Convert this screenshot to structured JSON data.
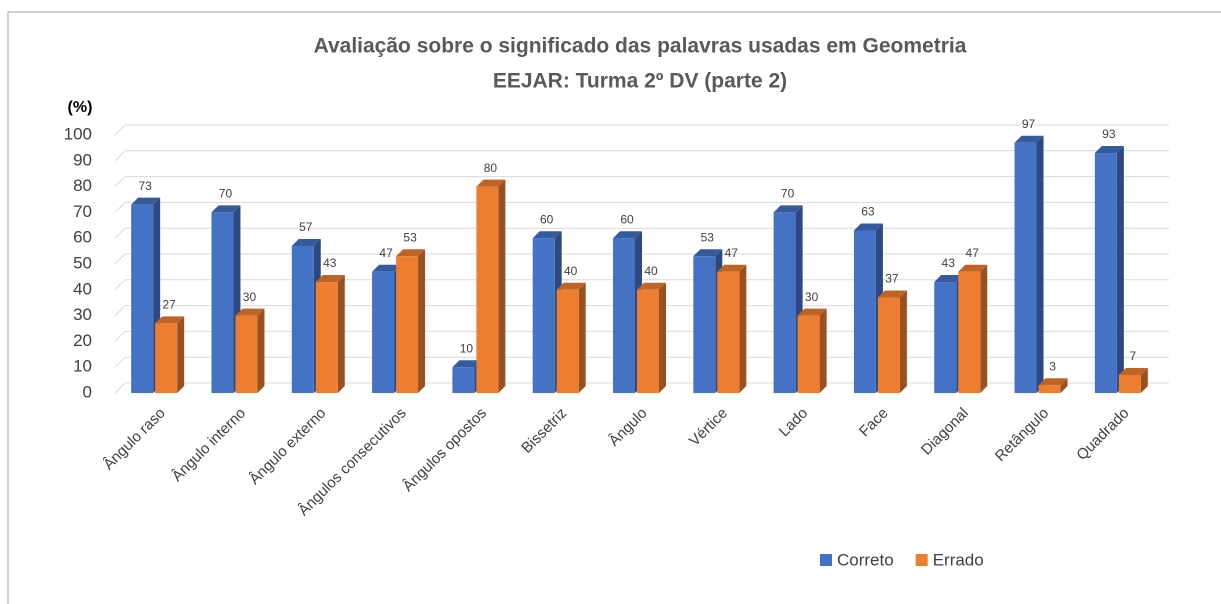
{
  "chart_data": {
    "type": "bar3d",
    "title": "Avaliação sobre o significado das palavras usadas em Geometria",
    "subtitle": "EEJAR: Turma 2º DV (parte 2)",
    "y_label": "(%)",
    "categories": [
      "Ângulo raso",
      "Ângulo interno",
      "Ângulo externo",
      "Ângulos consecutivos",
      "Ângulos opostos",
      "Bissetriz",
      "Ângulo",
      "Vértice",
      "Lado",
      "Face",
      "Diagonal",
      "Retângulo",
      "Quadrado"
    ],
    "series": [
      {
        "name": "Correto",
        "color": "#4472c4",
        "values": [
          73,
          70,
          57,
          47,
          10,
          60,
          60,
          53,
          70,
          63,
          43,
          97,
          93
        ]
      },
      {
        "name": "Errado",
        "color": "#ed7d31",
        "values": [
          27,
          30,
          43,
          53,
          80,
          40,
          40,
          47,
          30,
          37,
          47,
          3,
          7
        ]
      }
    ],
    "ylim": [
      0,
      100
    ],
    "yticks": [
      0,
      10,
      20,
      30,
      40,
      50,
      60,
      70,
      80,
      90,
      100
    ],
    "grid": true,
    "legend": "bottom"
  }
}
